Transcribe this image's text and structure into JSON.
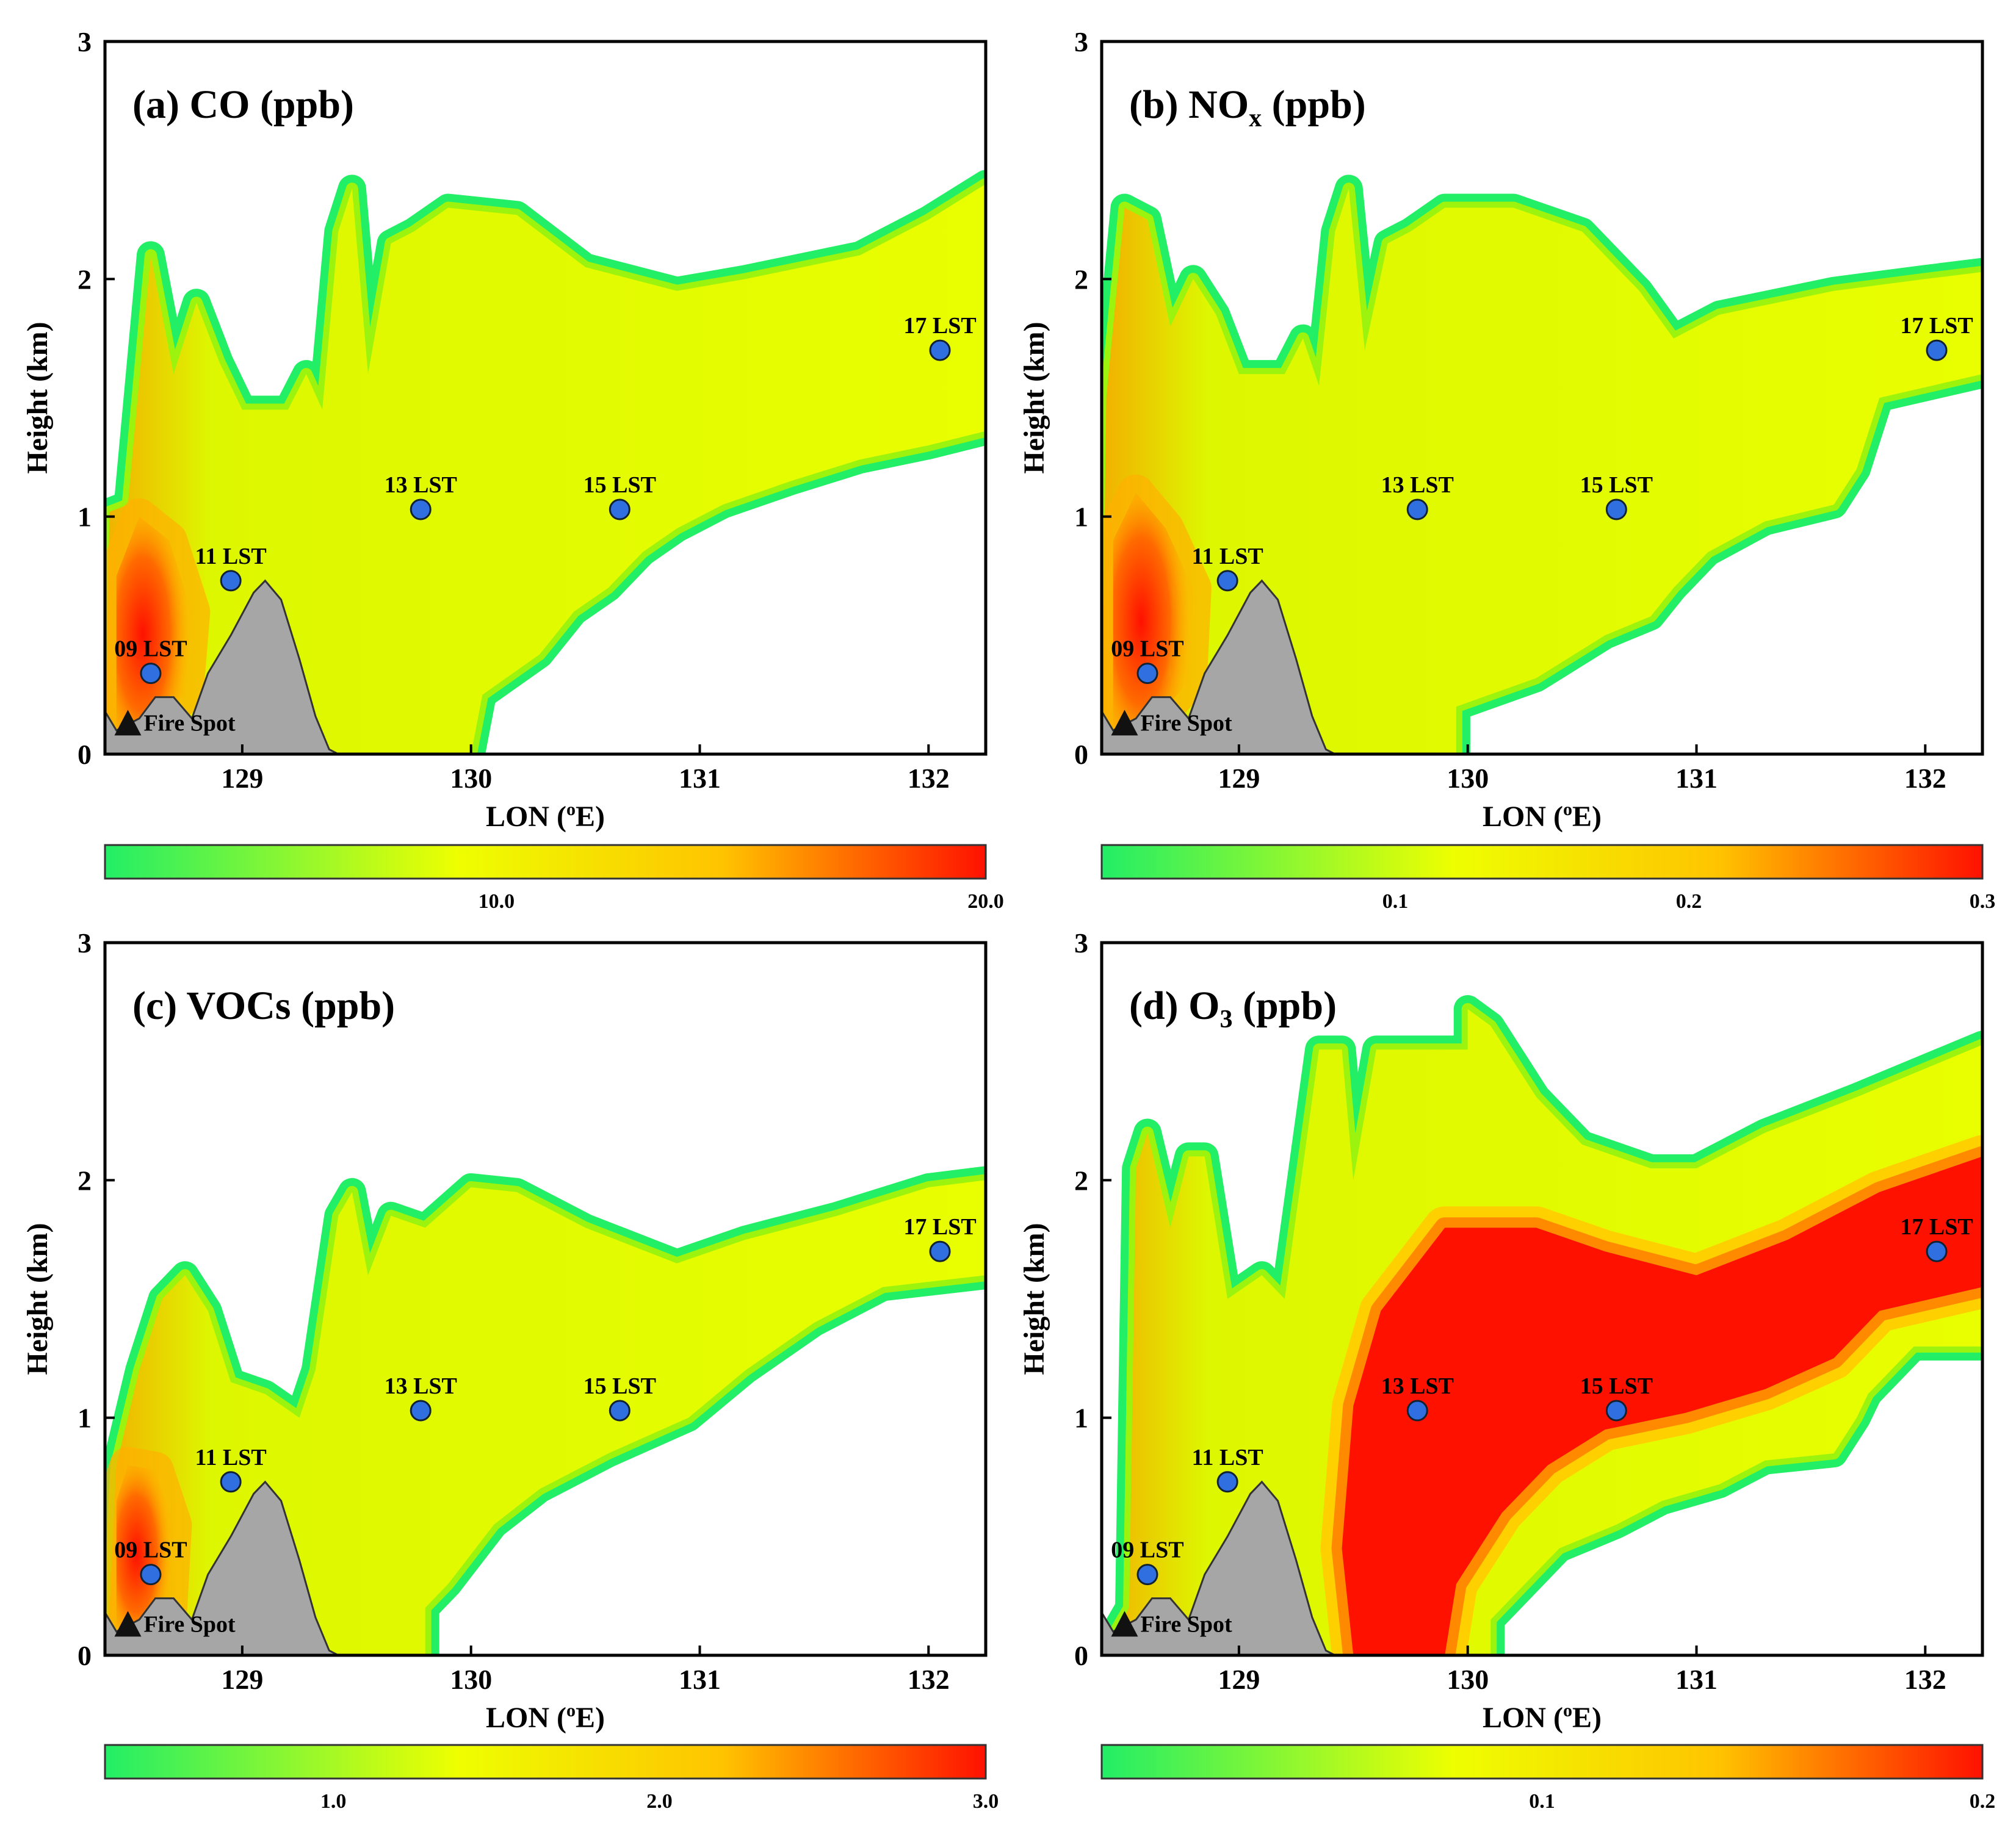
{
  "figure": {
    "colorscale": {
      "low": "#22ee66",
      "mid": "#eeff00",
      "high": "#ff1100"
    },
    "marker_color": "#2f6fe0",
    "terrain_color": "#a6a6a6"
  },
  "chart_data": [
    {
      "type": "contour-cross-section",
      "panel": "a",
      "title": {
        "main": "(a) CO (ppb)"
      },
      "xlabel": "LON (oE)",
      "ylabel": "Height (km)",
      "xlim": [
        128.4,
        132.25
      ],
      "ylim": [
        0,
        3
      ],
      "xticks": [
        129,
        130,
        131,
        132
      ],
      "yticks": [
        0,
        1,
        2,
        3
      ],
      "x_tick_labels": [
        "129",
        "130",
        "131",
        "132"
      ],
      "y_tick_labels": [
        "0",
        "1",
        "2",
        "3"
      ],
      "colorbar": {
        "min": 2.0,
        "max": 20.0,
        "ticks": [
          10.0,
          20.0
        ],
        "tick_labels": [
          "10.0",
          "20.0"
        ]
      },
      "plume_top": [
        [
          128.42,
          1.02
        ],
        [
          128.5,
          1.05
        ],
        [
          128.6,
          2.1
        ],
        [
          128.7,
          1.6
        ],
        [
          128.8,
          1.9
        ],
        [
          128.9,
          1.65
        ],
        [
          129.0,
          1.45
        ],
        [
          129.2,
          1.45
        ],
        [
          129.28,
          1.6
        ],
        [
          129.35,
          1.45
        ],
        [
          129.42,
          2.2
        ],
        [
          129.48,
          2.38
        ],
        [
          129.55,
          1.6
        ],
        [
          129.65,
          2.15
        ],
        [
          129.75,
          2.2
        ],
        [
          129.9,
          2.3
        ],
        [
          130.2,
          2.27
        ],
        [
          130.5,
          2.05
        ],
        [
          130.9,
          1.95
        ],
        [
          131.2,
          2.0
        ],
        [
          131.7,
          2.1
        ],
        [
          132.0,
          2.25
        ],
        [
          132.25,
          2.4
        ]
      ],
      "plume_bottom": [
        [
          132.25,
          1.36
        ],
        [
          132.0,
          1.3
        ],
        [
          131.7,
          1.24
        ],
        [
          131.4,
          1.15
        ],
        [
          131.1,
          1.05
        ],
        [
          130.9,
          0.95
        ],
        [
          130.75,
          0.85
        ],
        [
          130.6,
          0.7
        ],
        [
          130.45,
          0.6
        ],
        [
          130.3,
          0.42
        ],
        [
          130.05,
          0.25
        ],
        [
          130.0,
          0.0
        ]
      ],
      "high_core": [
        [
          128.45,
          0.1
        ],
        [
          128.45,
          0.75
        ],
        [
          128.55,
          1.0
        ],
        [
          128.68,
          0.9
        ],
        [
          128.78,
          0.6
        ],
        [
          128.75,
          0.25
        ],
        [
          128.6,
          0.12
        ]
      ],
      "fire_spot": {
        "lon": 128.5,
        "height": 0.13,
        "label": "Fire Spot"
      },
      "markers": [
        {
          "label": "09 LST",
          "lon": 128.6,
          "height": 0.34
        },
        {
          "label": "11 LST",
          "lon": 128.95,
          "height": 0.73
        },
        {
          "label": "13 LST",
          "lon": 129.78,
          "height": 1.03
        },
        {
          "label": "15 LST",
          "lon": 130.65,
          "height": 1.03
        },
        {
          "label": "17 LST",
          "lon": 132.05,
          "height": 1.7
        }
      ],
      "terrain": [
        [
          128.4,
          0.18
        ],
        [
          128.45,
          0.1
        ],
        [
          128.55,
          0.15
        ],
        [
          128.62,
          0.24
        ],
        [
          128.7,
          0.24
        ],
        [
          128.78,
          0.15
        ],
        [
          128.85,
          0.34
        ],
        [
          128.95,
          0.5
        ],
        [
          129.05,
          0.68
        ],
        [
          129.1,
          0.73
        ],
        [
          129.17,
          0.65
        ],
        [
          129.25,
          0.4
        ],
        [
          129.32,
          0.16
        ],
        [
          129.38,
          0.02
        ],
        [
          129.42,
          0.0
        ]
      ]
    },
    {
      "type": "contour-cross-section",
      "panel": "b",
      "title": {
        "main": "(b) NO",
        "sub": "x",
        "rest": " (ppb)"
      },
      "xlabel": "LON (oE)",
      "ylabel": "Height (km)",
      "xlim": [
        128.4,
        132.25
      ],
      "ylim": [
        0,
        3
      ],
      "xticks": [
        129,
        130,
        131,
        132
      ],
      "yticks": [
        0,
        1,
        2,
        3
      ],
      "x_tick_labels": [
        "129",
        "130",
        "131",
        "132"
      ],
      "y_tick_labels": [
        "0",
        "1",
        "2",
        "3"
      ],
      "colorbar": {
        "min": 0.0,
        "max": 0.3,
        "ticks": [
          0.1,
          0.2,
          0.3
        ],
        "tick_labels": [
          "0.1",
          "0.2",
          "0.3"
        ]
      },
      "plume_top": [
        [
          128.42,
          1.5
        ],
        [
          128.5,
          2.3
        ],
        [
          128.6,
          2.25
        ],
        [
          128.7,
          1.8
        ],
        [
          128.8,
          2.0
        ],
        [
          128.9,
          1.85
        ],
        [
          129.0,
          1.6
        ],
        [
          129.2,
          1.6
        ],
        [
          129.28,
          1.75
        ],
        [
          129.35,
          1.55
        ],
        [
          129.42,
          2.2
        ],
        [
          129.48,
          2.38
        ],
        [
          129.55,
          1.7
        ],
        [
          129.65,
          2.15
        ],
        [
          129.75,
          2.2
        ],
        [
          129.9,
          2.3
        ],
        [
          130.2,
          2.3
        ],
        [
          130.5,
          2.2
        ],
        [
          130.75,
          1.95
        ],
        [
          130.9,
          1.75
        ],
        [
          131.1,
          1.85
        ],
        [
          131.6,
          1.95
        ],
        [
          132.0,
          2.0
        ],
        [
          132.25,
          2.03
        ]
      ],
      "plume_bottom": [
        [
          132.25,
          1.6
        ],
        [
          131.8,
          1.5
        ],
        [
          131.7,
          1.2
        ],
        [
          131.6,
          1.05
        ],
        [
          131.3,
          0.98
        ],
        [
          131.05,
          0.85
        ],
        [
          130.9,
          0.7
        ],
        [
          130.8,
          0.58
        ],
        [
          130.6,
          0.5
        ],
        [
          130.3,
          0.32
        ],
        [
          129.95,
          0.2
        ],
        [
          129.95,
          0.0
        ]
      ],
      "high_core": [
        [
          128.45,
          0.12
        ],
        [
          128.45,
          0.9
        ],
        [
          128.55,
          1.1
        ],
        [
          128.68,
          0.95
        ],
        [
          128.8,
          0.7
        ],
        [
          128.78,
          0.3
        ],
        [
          128.6,
          0.12
        ]
      ],
      "fire_spot": {
        "lon": 128.5,
        "height": 0.13,
        "label": "Fire Spot"
      },
      "markers": [
        {
          "label": "09 LST",
          "lon": 128.6,
          "height": 0.34
        },
        {
          "label": "11 LST",
          "lon": 128.95,
          "height": 0.73
        },
        {
          "label": "13 LST",
          "lon": 129.78,
          "height": 1.03
        },
        {
          "label": "15 LST",
          "lon": 130.65,
          "height": 1.03
        },
        {
          "label": "17 LST",
          "lon": 132.05,
          "height": 1.7
        }
      ],
      "terrain": [
        [
          128.4,
          0.18
        ],
        [
          128.45,
          0.1
        ],
        [
          128.55,
          0.15
        ],
        [
          128.62,
          0.24
        ],
        [
          128.7,
          0.24
        ],
        [
          128.78,
          0.15
        ],
        [
          128.85,
          0.34
        ],
        [
          128.95,
          0.5
        ],
        [
          129.05,
          0.68
        ],
        [
          129.1,
          0.73
        ],
        [
          129.17,
          0.65
        ],
        [
          129.25,
          0.4
        ],
        [
          129.32,
          0.16
        ],
        [
          129.38,
          0.02
        ],
        [
          129.42,
          0.0
        ]
      ]
    },
    {
      "type": "contour-cross-section",
      "panel": "c",
      "title": {
        "main": "(c) VOCs (ppb)"
      },
      "xlabel": "LON (oE)",
      "ylabel": "Height (km)",
      "xlim": [
        128.4,
        132.25
      ],
      "ylim": [
        0,
        3
      ],
      "xticks": [
        129,
        130,
        131,
        132
      ],
      "yticks": [
        0,
        1,
        2,
        3
      ],
      "x_tick_labels": [
        "129",
        "130",
        "131",
        "132"
      ],
      "y_tick_labels": [
        "0",
        "1",
        "2",
        "3"
      ],
      "colorbar": {
        "min": 0.3,
        "max": 3.0,
        "ticks": [
          1.0,
          2.0,
          3.0
        ],
        "tick_labels": [
          "1.0",
          "2.0",
          "3.0"
        ]
      },
      "plume_top": [
        [
          128.42,
          0.2
        ],
        [
          128.45,
          0.8
        ],
        [
          128.55,
          1.2
        ],
        [
          128.65,
          1.5
        ],
        [
          128.75,
          1.6
        ],
        [
          128.85,
          1.45
        ],
        [
          128.95,
          1.15
        ],
        [
          129.1,
          1.1
        ],
        [
          129.25,
          1.0
        ],
        [
          129.32,
          1.2
        ],
        [
          129.42,
          1.85
        ],
        [
          129.48,
          1.95
        ],
        [
          129.55,
          1.6
        ],
        [
          129.65,
          1.85
        ],
        [
          129.8,
          1.8
        ],
        [
          130.0,
          1.97
        ],
        [
          130.2,
          1.95
        ],
        [
          130.5,
          1.8
        ],
        [
          130.9,
          1.65
        ],
        [
          131.2,
          1.75
        ],
        [
          131.6,
          1.85
        ],
        [
          132.0,
          1.97
        ],
        [
          132.25,
          2.0
        ]
      ],
      "plume_bottom": [
        [
          132.25,
          1.6
        ],
        [
          131.8,
          1.55
        ],
        [
          131.5,
          1.4
        ],
        [
          131.2,
          1.2
        ],
        [
          130.95,
          1.0
        ],
        [
          130.6,
          0.85
        ],
        [
          130.3,
          0.7
        ],
        [
          130.1,
          0.55
        ],
        [
          129.9,
          0.3
        ],
        [
          129.8,
          0.2
        ],
        [
          129.8,
          0.0
        ]
      ],
      "high_core": [
        [
          128.45,
          0.12
        ],
        [
          128.45,
          0.65
        ],
        [
          128.5,
          0.8
        ],
        [
          128.62,
          0.78
        ],
        [
          128.7,
          0.55
        ],
        [
          128.68,
          0.2
        ],
        [
          128.6,
          0.12
        ]
      ],
      "fire_spot": {
        "lon": 128.5,
        "height": 0.13,
        "label": "Fire Spot"
      },
      "markers": [
        {
          "label": "09 LST",
          "lon": 128.6,
          "height": 0.34
        },
        {
          "label": "11 LST",
          "lon": 128.95,
          "height": 0.73
        },
        {
          "label": "13 LST",
          "lon": 129.78,
          "height": 1.03
        },
        {
          "label": "15 LST",
          "lon": 130.65,
          "height": 1.03
        },
        {
          "label": "17 LST",
          "lon": 132.05,
          "height": 1.7
        }
      ],
      "terrain": [
        [
          128.4,
          0.18
        ],
        [
          128.45,
          0.1
        ],
        [
          128.55,
          0.15
        ],
        [
          128.62,
          0.24
        ],
        [
          128.7,
          0.24
        ],
        [
          128.78,
          0.15
        ],
        [
          128.85,
          0.34
        ],
        [
          128.95,
          0.5
        ],
        [
          129.05,
          0.68
        ],
        [
          129.1,
          0.73
        ],
        [
          129.17,
          0.65
        ],
        [
          129.25,
          0.4
        ],
        [
          129.32,
          0.16
        ],
        [
          129.38,
          0.02
        ],
        [
          129.42,
          0.0
        ]
      ]
    },
    {
      "type": "contour-cross-section",
      "panel": "d",
      "title": {
        "main": "(d) O",
        "sub": "3",
        "rest": " (ppb)"
      },
      "xlabel": "LON (oE)",
      "ylabel": "Height (km)",
      "xlim": [
        128.4,
        132.25
      ],
      "ylim": [
        0,
        3
      ],
      "xticks": [
        129,
        130,
        131,
        132
      ],
      "yticks": [
        0,
        1,
        2,
        3
      ],
      "x_tick_labels": [
        "129",
        "130",
        "131",
        "132"
      ],
      "y_tick_labels": [
        "0",
        "1",
        "2",
        "3"
      ],
      "colorbar": {
        "min": 0.0,
        "max": 0.2,
        "ticks": [
          0.1,
          0.2
        ],
        "tick_labels": [
          "0.1",
          "0.2"
        ]
      },
      "plume_top": [
        [
          128.52,
          0.2
        ],
        [
          128.55,
          2.05
        ],
        [
          128.6,
          2.2
        ],
        [
          128.7,
          1.8
        ],
        [
          128.78,
          2.1
        ],
        [
          128.85,
          2.1
        ],
        [
          128.95,
          1.5
        ],
        [
          129.1,
          1.6
        ],
        [
          129.2,
          1.5
        ],
        [
          129.35,
          2.55
        ],
        [
          129.45,
          2.55
        ],
        [
          129.5,
          2.0
        ],
        [
          129.6,
          2.55
        ],
        [
          129.75,
          2.55
        ],
        [
          130.0,
          2.55
        ],
        [
          130.0,
          2.72
        ],
        [
          130.1,
          2.65
        ],
        [
          130.3,
          2.35
        ],
        [
          130.5,
          2.15
        ],
        [
          130.8,
          2.05
        ],
        [
          131.0,
          2.05
        ],
        [
          131.3,
          2.2
        ],
        [
          131.7,
          2.35
        ],
        [
          132.25,
          2.57
        ]
      ],
      "plume_bottom": [
        [
          132.25,
          1.3
        ],
        [
          131.95,
          1.3
        ],
        [
          131.75,
          1.1
        ],
        [
          131.7,
          1.0
        ],
        [
          131.6,
          0.85
        ],
        [
          131.3,
          0.82
        ],
        [
          131.1,
          0.72
        ],
        [
          130.85,
          0.65
        ],
        [
          130.65,
          0.55
        ],
        [
          130.4,
          0.45
        ],
        [
          130.1,
          0.15
        ],
        [
          130.1,
          0.0
        ]
      ],
      "high_core": [
        [
          129.5,
          0.0
        ],
        [
          129.45,
          0.45
        ],
        [
          129.5,
          1.05
        ],
        [
          129.62,
          1.45
        ],
        [
          129.9,
          1.8
        ],
        [
          130.3,
          1.8
        ],
        [
          130.6,
          1.7
        ],
        [
          131.0,
          1.6
        ],
        [
          131.4,
          1.75
        ],
        [
          131.8,
          1.95
        ],
        [
          132.25,
          2.1
        ],
        [
          132.25,
          1.55
        ],
        [
          131.8,
          1.45
        ],
        [
          131.6,
          1.25
        ],
        [
          131.3,
          1.12
        ],
        [
          130.95,
          1.02
        ],
        [
          130.6,
          0.95
        ],
        [
          130.35,
          0.8
        ],
        [
          130.15,
          0.6
        ],
        [
          129.95,
          0.3
        ],
        [
          129.9,
          0.0
        ]
      ],
      "fire_spot": {
        "lon": 128.5,
        "height": 0.13,
        "label": "Fire Spot"
      },
      "markers": [
        {
          "label": "09 LST",
          "lon": 128.6,
          "height": 0.34
        },
        {
          "label": "11 LST",
          "lon": 128.95,
          "height": 0.73
        },
        {
          "label": "13 LST",
          "lon": 129.78,
          "height": 1.03
        },
        {
          "label": "15 LST",
          "lon": 130.65,
          "height": 1.03
        },
        {
          "label": "17 LST",
          "lon": 132.05,
          "height": 1.7
        }
      ],
      "terrain": [
        [
          128.4,
          0.18
        ],
        [
          128.45,
          0.1
        ],
        [
          128.55,
          0.15
        ],
        [
          128.62,
          0.24
        ],
        [
          128.7,
          0.24
        ],
        [
          128.78,
          0.15
        ],
        [
          128.85,
          0.34
        ],
        [
          128.95,
          0.5
        ],
        [
          129.05,
          0.68
        ],
        [
          129.1,
          0.73
        ],
        [
          129.17,
          0.65
        ],
        [
          129.25,
          0.4
        ],
        [
          129.32,
          0.16
        ],
        [
          129.38,
          0.02
        ],
        [
          129.42,
          0.0
        ]
      ]
    }
  ]
}
